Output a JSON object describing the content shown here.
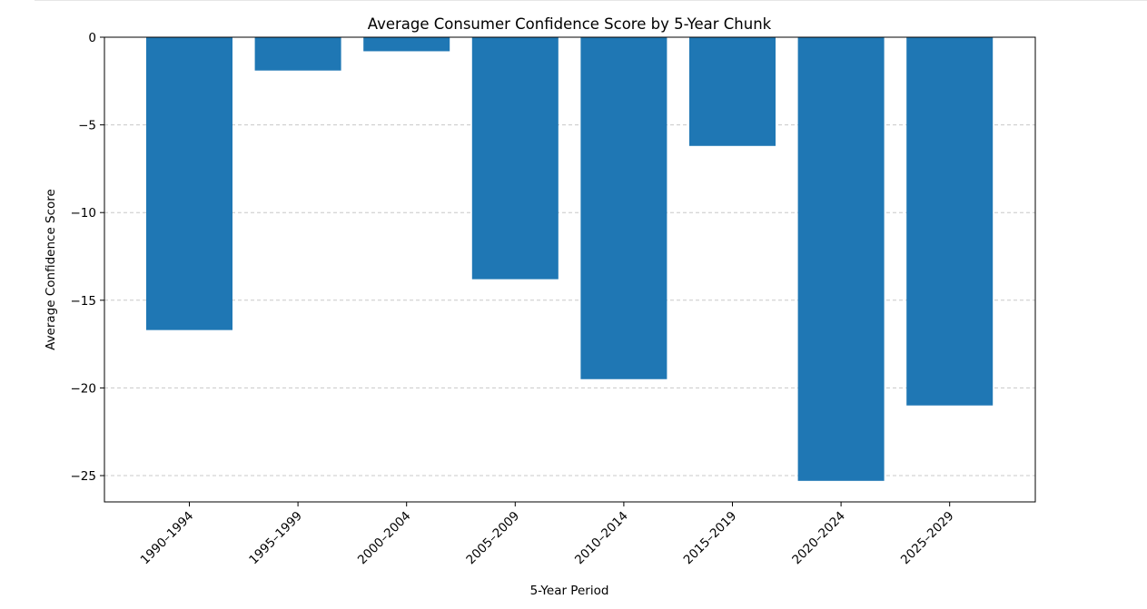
{
  "chart_data": {
    "type": "bar",
    "title": "Average Consumer Confidence Score by 5-Year Chunk",
    "xlabel": "5-Year Period",
    "ylabel": "Average Confidence Score",
    "categories": [
      "1990–1994",
      "1995–1999",
      "2000–2004",
      "2005–2009",
      "2010–2014",
      "2015–2019",
      "2020–2024",
      "2025–2029"
    ],
    "values": [
      -16.7,
      -1.9,
      -0.8,
      -13.8,
      -19.5,
      -6.2,
      -25.3,
      -21.0
    ],
    "ylim": [
      -26.5,
      0
    ],
    "yticks": [
      0,
      -5,
      -10,
      -15,
      -20,
      -25
    ],
    "grid": "horizontal dashed",
    "bar_color": "#1f77b4",
    "grid_color": "#c8c8c8"
  }
}
